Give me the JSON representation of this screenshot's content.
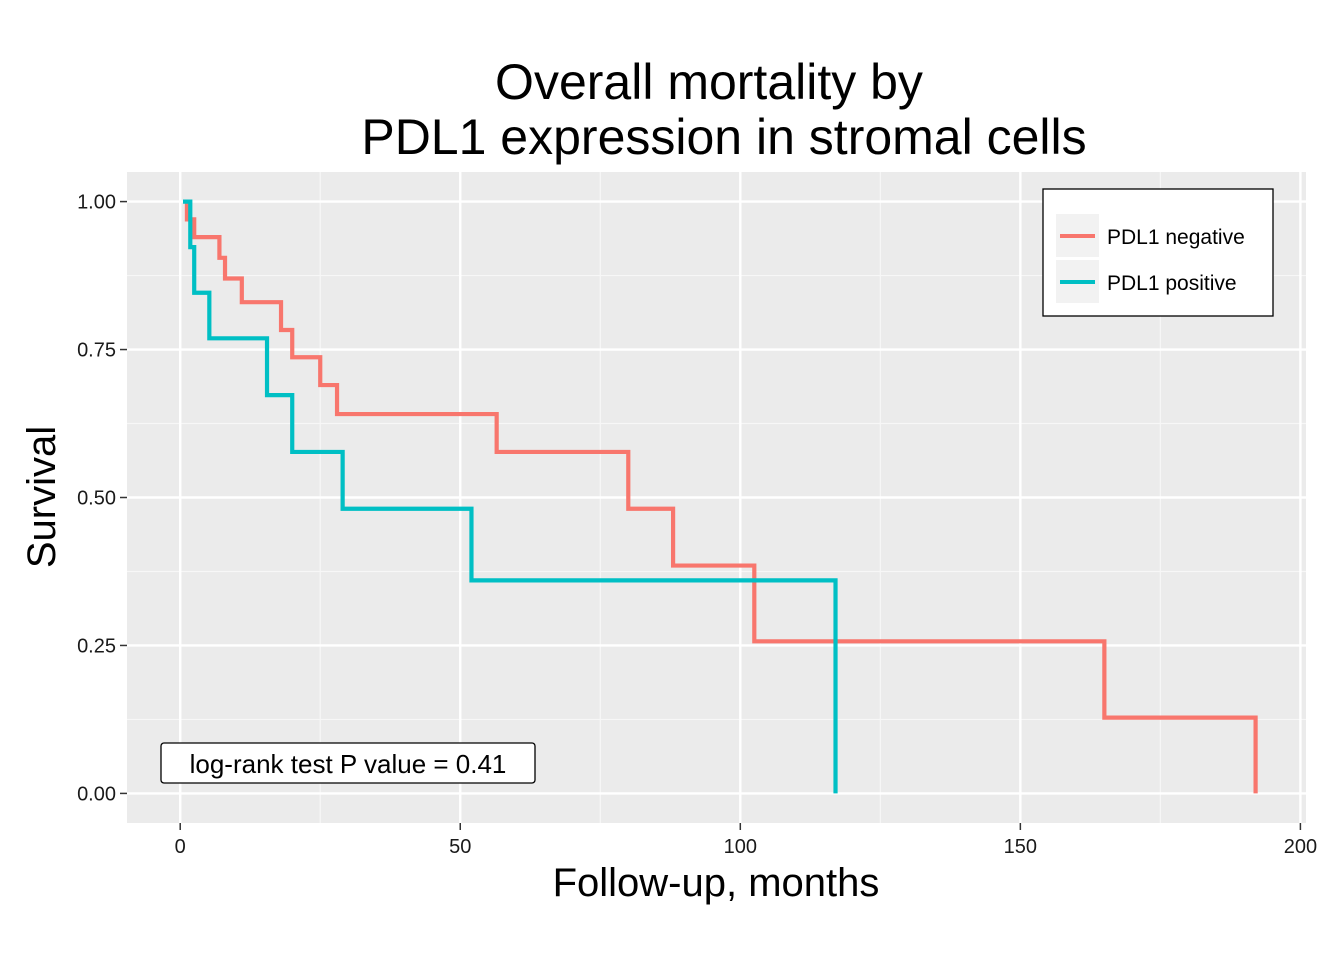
{
  "chart_data": {
    "type": "line",
    "step": true,
    "title_lines": [
      "Overall mortality by",
      "PDL1 expression in stromal cells"
    ],
    "xlabel": "Follow-up, months",
    "ylabel": "Survival",
    "xlim": [
      -9.5,
      201
    ],
    "ylim": [
      -0.05,
      1.05
    ],
    "x_ticks": [
      0,
      50,
      100,
      150,
      200
    ],
    "x_tick_labels": [
      "0",
      "50",
      "100",
      "150",
      "200"
    ],
    "x_minor": [
      25,
      75,
      125,
      175
    ],
    "y_ticks": [
      0,
      0.25,
      0.5,
      0.75,
      1.0
    ],
    "y_tick_labels": [
      "0.00",
      "0.25",
      "0.50",
      "0.75",
      "1.00"
    ],
    "y_minor": [
      0.125,
      0.375,
      0.625,
      0.875
    ],
    "grid": true,
    "legend_position": "top-right",
    "annotation": "log-rank test P value = 0.41",
    "series": [
      {
        "name": "PDL1 negative",
        "color": "#F8766D",
        "x": [
          1,
          1.2,
          2.5,
          7,
          8,
          11,
          18,
          20,
          25,
          28,
          56.5,
          80,
          88,
          102.5,
          165,
          192
        ],
        "y": [
          1.0,
          0.97,
          0.94,
          0.905,
          0.87,
          0.83,
          0.783,
          0.737,
          0.69,
          0.641,
          0.577,
          0.481,
          0.385,
          0.257,
          0.128,
          0.0
        ]
      },
      {
        "name": "PDL1 positive",
        "color": "#00BFC4",
        "x": [
          0.5,
          1.8,
          2.5,
          5.2,
          15.5,
          20,
          29,
          52,
          117
        ],
        "y": [
          1.0,
          0.923,
          0.846,
          0.769,
          0.673,
          0.577,
          0.481,
          0.36,
          0.0
        ]
      }
    ]
  }
}
